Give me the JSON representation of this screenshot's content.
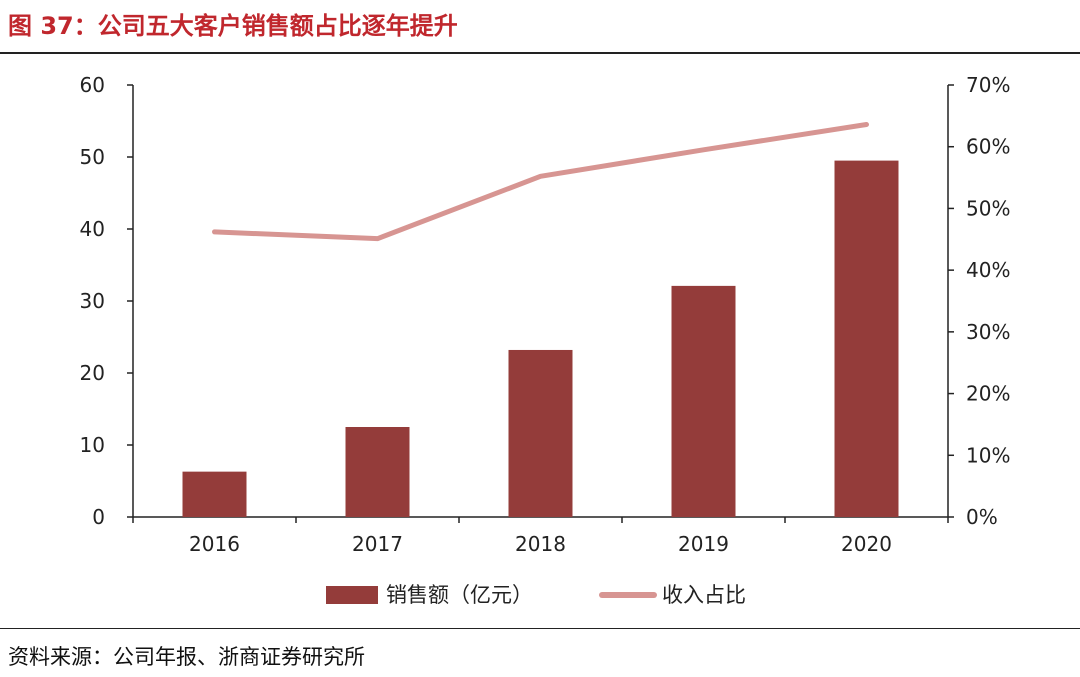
{
  "header": {
    "title": "图 37：公司五大客户销售额占比逐年提升"
  },
  "footer": {
    "source": "资料来源：公司年报、浙商证券研究所"
  },
  "colors": {
    "bar": "#943c3a",
    "line": "#d79592",
    "axis": "#222222",
    "title": "#c0272d"
  },
  "chart_data": {
    "type": "bar+line",
    "categories": [
      "2016",
      "2017",
      "2018",
      "2019",
      "2020"
    ],
    "series": [
      {
        "name": "销售额（亿元）",
        "type": "bar",
        "axis": "left",
        "values": [
          6.3,
          12.5,
          23.2,
          32.1,
          49.5
        ]
      },
      {
        "name": "收入占比",
        "type": "line",
        "axis": "right",
        "values": [
          46.2,
          45.1,
          55.2,
          59.5,
          63.6
        ]
      }
    ],
    "left_axis": {
      "min": 0,
      "max": 60,
      "ticks": [
        "0",
        "10",
        "20",
        "30",
        "40",
        "50",
        "60"
      ]
    },
    "right_axis": {
      "min": 0,
      "max": 70,
      "ticks": [
        "0%",
        "10%",
        "20%",
        "30%",
        "40%",
        "50%",
        "60%",
        "70%"
      ]
    },
    "legend": {
      "position": "bottom"
    }
  }
}
